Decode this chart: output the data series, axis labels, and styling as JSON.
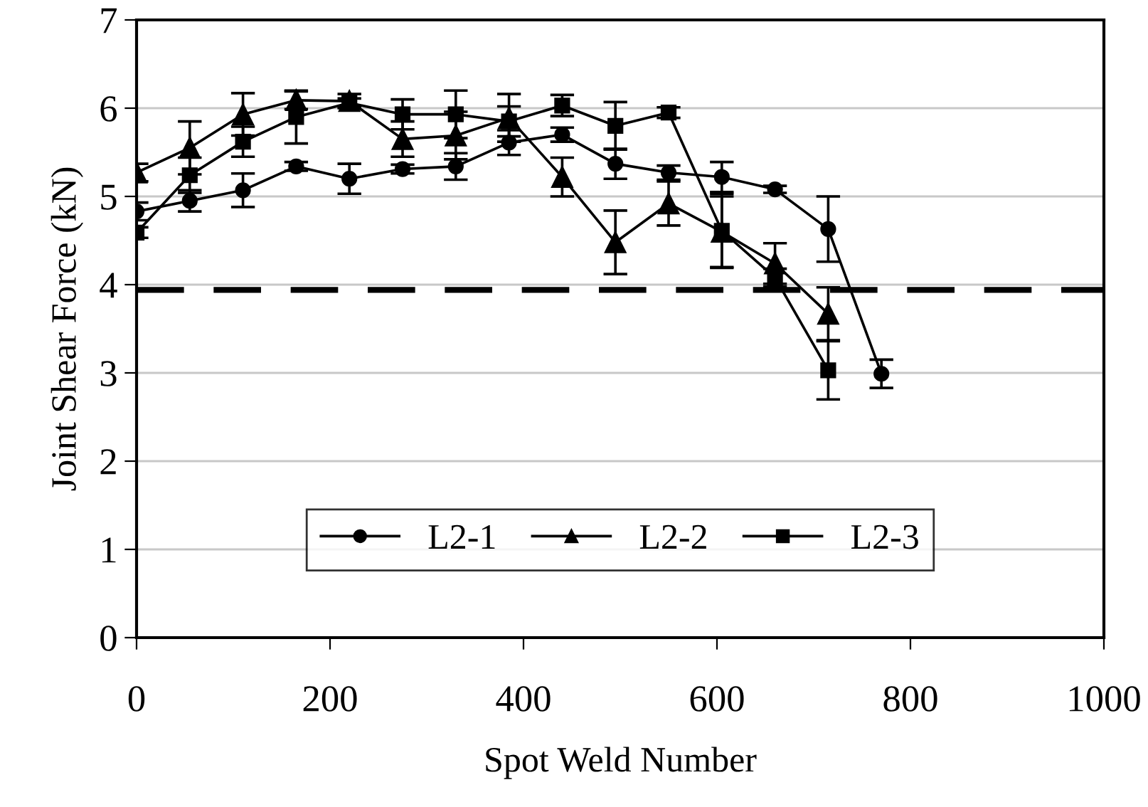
{
  "chart_data": {
    "type": "line",
    "xlabel": "Spot Weld Number",
    "ylabel": "Joint Shear Force (kN)",
    "x": [
      0,
      55,
      110,
      165,
      220,
      275,
      330,
      385,
      440,
      495,
      550,
      605,
      660,
      715,
      770
    ],
    "xlim": [
      0,
      1000
    ],
    "xticks": [
      0,
      200,
      400,
      600,
      800,
      1000
    ],
    "ylim": [
      0,
      7
    ],
    "yticks": [
      0,
      1,
      2,
      3,
      4,
      5,
      6,
      7
    ],
    "grid": "y",
    "legend": "bottom",
    "line_style": "solid",
    "series": [
      {
        "name": "L2-1",
        "color": "#000000",
        "marker": "circle",
        "values": [
          4.83,
          4.95,
          5.07,
          5.34,
          5.2,
          5.31,
          5.34,
          5.61,
          5.7,
          5.37,
          5.27,
          5.22,
          5.08,
          4.63,
          2.99
        ],
        "errors": [
          0.1,
          0.12,
          0.19,
          0.05,
          0.17,
          0.05,
          0.15,
          0.14,
          0.08,
          0.17,
          0.08,
          0.17,
          0.04,
          0.37,
          0.16
        ]
      },
      {
        "name": "L2-2",
        "color": "#000000",
        "marker": "triangle",
        "x": [
          0,
          55,
          110,
          165,
          220,
          275,
          330,
          385,
          440,
          495,
          550,
          605,
          660,
          715
        ],
        "values": [
          5.27,
          5.55,
          5.93,
          6.09,
          6.08,
          5.65,
          5.69,
          5.89,
          5.22,
          4.48,
          4.92,
          4.6,
          4.24,
          3.67
        ],
        "errors": [
          0.1,
          0.3,
          0.24,
          0.1,
          0.08,
          0.2,
          0.27,
          0.27,
          0.22,
          0.36,
          0.25,
          0.4,
          0.23,
          0.3
        ]
      },
      {
        "name": "L2-3",
        "color": "#000000",
        "marker": "square",
        "x": [
          0,
          55,
          110,
          165,
          220,
          275,
          330,
          385,
          440,
          495,
          550,
          605,
          660,
          715
        ],
        "values": [
          4.59,
          5.24,
          5.62,
          5.9,
          6.06,
          5.93,
          5.93,
          5.85,
          6.03,
          5.8,
          5.95,
          4.61,
          4.08,
          3.03
        ],
        "errors": [
          0.06,
          0.2,
          0.17,
          0.3,
          0.05,
          0.17,
          0.27,
          0.17,
          0.12,
          0.27,
          0.06,
          0.42,
          0.1,
          0.33
        ]
      }
    ],
    "ref_lines": [
      {
        "axis": "y",
        "value": 3.94,
        "color": "#000000",
        "line_style": "dashed"
      }
    ]
  }
}
